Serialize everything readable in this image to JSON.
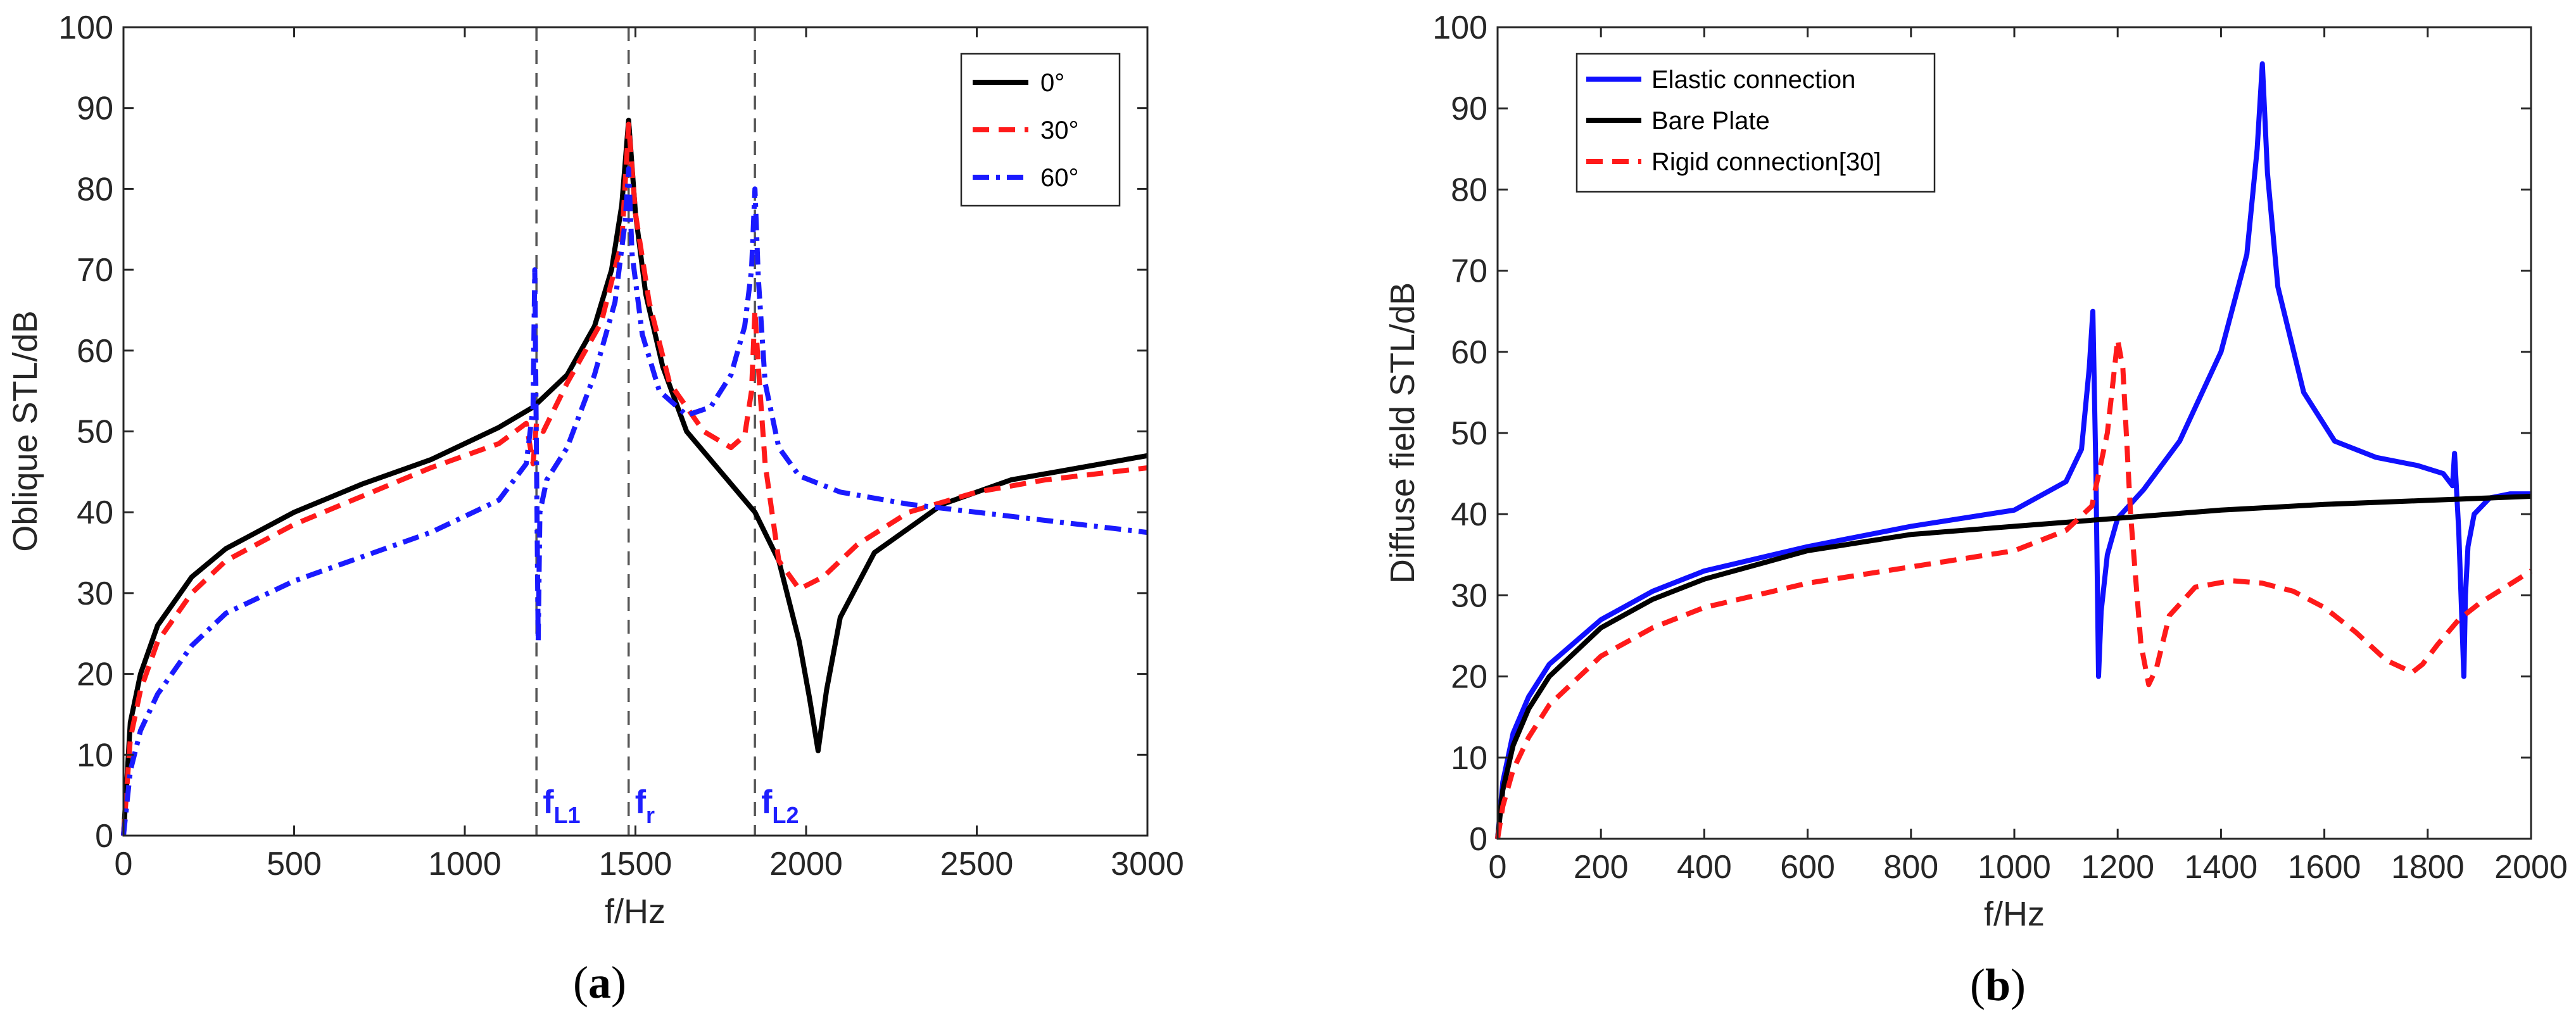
{
  "chart_data": [
    {
      "id": "a",
      "type": "line",
      "caption": {
        "open": "(",
        "letter": "a",
        "close": ")"
      },
      "xlabel": "f/Hz",
      "ylabel": "Oblique STL/dB",
      "xlim": [
        0,
        3000
      ],
      "ylim": [
        0,
        100
      ],
      "xticks": [
        0,
        500,
        1000,
        1500,
        2000,
        2500,
        3000
      ],
      "yticks": [
        0,
        10,
        20,
        30,
        40,
        50,
        60,
        70,
        80,
        90,
        100
      ],
      "legend_position": "top-right",
      "grid": false,
      "vlines": [
        {
          "x": 1210,
          "label": "f",
          "sub": "L1"
        },
        {
          "x": 1480,
          "label": "f",
          "sub": "r"
        },
        {
          "x": 1850,
          "label": "f",
          "sub": "L2"
        }
      ],
      "series": [
        {
          "name": "0°",
          "color": "#000000",
          "dash": "solid",
          "x": [
            0,
            20,
            50,
            100,
            200,
            300,
            500,
            700,
            900,
            1100,
            1200,
            1300,
            1380,
            1430,
            1460,
            1480,
            1500,
            1530,
            1580,
            1650,
            1750,
            1850,
            1920,
            1980,
            2010,
            2035,
            2060,
            2100,
            2200,
            2400,
            2600,
            2800,
            3000
          ],
          "y": [
            0,
            14,
            20,
            26,
            32,
            35.5,
            40,
            43.5,
            46.5,
            50.5,
            53,
            57,
            63,
            70,
            78,
            88.5,
            77,
            67,
            58,
            50,
            45,
            40,
            34,
            24,
            17,
            10.5,
            18,
            27,
            35,
            41,
            44,
            45.5,
            47
          ]
        },
        {
          "name": "30°",
          "color": "#ff1a1a",
          "dash": "dashed",
          "x": [
            0,
            20,
            50,
            100,
            200,
            300,
            500,
            700,
            900,
            1100,
            1180,
            1200,
            1210,
            1230,
            1300,
            1400,
            1460,
            1480,
            1500,
            1540,
            1600,
            1700,
            1780,
            1820,
            1840,
            1850,
            1860,
            1880,
            1920,
            1980,
            2050,
            2150,
            2300,
            2500,
            2700,
            3000
          ],
          "y": [
            0,
            12,
            18,
            24,
            30,
            34,
            38.5,
            42,
            45.5,
            48.5,
            51,
            46,
            51,
            50,
            56,
            63.5,
            73.5,
            88,
            77,
            66,
            56,
            50,
            48,
            49.5,
            55,
            65,
            58,
            46,
            34,
            30.5,
            32,
            36,
            40,
            42.5,
            44,
            45.5
          ]
        },
        {
          "name": "60°",
          "color": "#1a1aff",
          "dash": "dashdot",
          "x": [
            0,
            20,
            50,
            100,
            200,
            300,
            500,
            700,
            900,
            1100,
            1180,
            1200,
            1205,
            1210,
            1215,
            1220,
            1240,
            1300,
            1380,
            1440,
            1470,
            1480,
            1490,
            1520,
            1570,
            1650,
            1720,
            1780,
            1820,
            1840,
            1850,
            1860,
            1880,
            1920,
            1980,
            2100,
            2300,
            2500,
            2700,
            2900,
            3000
          ],
          "y": [
            0,
            8,
            13,
            17.5,
            23.5,
            27.5,
            31.5,
            34.5,
            37.5,
            41.5,
            46,
            53,
            70,
            47,
            24,
            40,
            44,
            48,
            57,
            66,
            76,
            82.5,
            72,
            62,
            55,
            52,
            53,
            57,
            63,
            70,
            80,
            69,
            56,
            48,
            44.5,
            42.5,
            41,
            40,
            39,
            38,
            37.5
          ]
        }
      ]
    },
    {
      "id": "b",
      "type": "line",
      "caption": {
        "open": "(",
        "letter": "b",
        "close": ")"
      },
      "xlabel": "f/Hz",
      "ylabel": "Diffuse field STL/dB",
      "xlim": [
        0,
        2000
      ],
      "ylim": [
        0,
        100
      ],
      "xticks": [
        0,
        200,
        400,
        600,
        800,
        1000,
        1200,
        1400,
        1600,
        1800,
        2000
      ],
      "yticks": [
        0,
        10,
        20,
        30,
        40,
        50,
        60,
        70,
        80,
        90,
        100
      ],
      "legend_position": "top-left",
      "grid": false,
      "series": [
        {
          "name": "Elastic connection",
          "color": "#1010ff",
          "dash": "solid",
          "x": [
            0,
            10,
            30,
            60,
            100,
            200,
            300,
            400,
            600,
            800,
            1000,
            1100,
            1130,
            1145,
            1152,
            1158,
            1163,
            1168,
            1180,
            1200,
            1250,
            1320,
            1400,
            1450,
            1470,
            1480,
            1490,
            1510,
            1560,
            1620,
            1700,
            1780,
            1830,
            1848,
            1852,
            1860,
            1870,
            1873,
            1878,
            1890,
            1920,
            1960,
            2000
          ],
          "y": [
            0,
            7,
            13,
            17.5,
            21.5,
            27,
            30.5,
            33,
            36,
            38.5,
            40.5,
            44,
            48,
            58,
            65,
            45,
            20,
            28,
            35,
            39.5,
            43,
            49,
            60,
            72,
            85,
            95.5,
            82,
            68,
            55,
            49,
            47,
            46,
            45,
            43.5,
            47.5,
            38,
            20,
            30,
            36,
            40,
            42,
            42.5,
            42.5
          ]
        },
        {
          "name": "Bare Plate",
          "color": "#000000",
          "dash": "solid",
          "x": [
            0,
            10,
            30,
            60,
            100,
            200,
            300,
            400,
            600,
            800,
            1000,
            1200,
            1400,
            1600,
            1800,
            2000
          ],
          "y": [
            0,
            6,
            11.5,
            16,
            20,
            26,
            29.5,
            32,
            35.5,
            37.5,
            38.5,
            39.5,
            40.5,
            41.2,
            41.7,
            42.2
          ]
        },
        {
          "name": "Rigid connection[30]",
          "color": "#ff1a1a",
          "dash": "dashed",
          "x": [
            0,
            10,
            30,
            60,
            100,
            200,
            300,
            400,
            600,
            800,
            1000,
            1100,
            1150,
            1180,
            1200,
            1210,
            1225,
            1245,
            1260,
            1275,
            1300,
            1350,
            1420,
            1480,
            1540,
            1600,
            1660,
            1720,
            1770,
            1790,
            1820,
            1860,
            1900,
            1950,
            2000
          ],
          "y": [
            0,
            4,
            8.5,
            12.5,
            16.5,
            22.5,
            26,
            28.5,
            31.5,
            33.5,
            35.5,
            38,
            41,
            50,
            61.5,
            58,
            40,
            24,
            19,
            21,
            27.5,
            31,
            31.8,
            31.5,
            30.5,
            28.5,
            25.5,
            22,
            20.5,
            21.5,
            24,
            27,
            29,
            31,
            33
          ]
        }
      ]
    }
  ]
}
